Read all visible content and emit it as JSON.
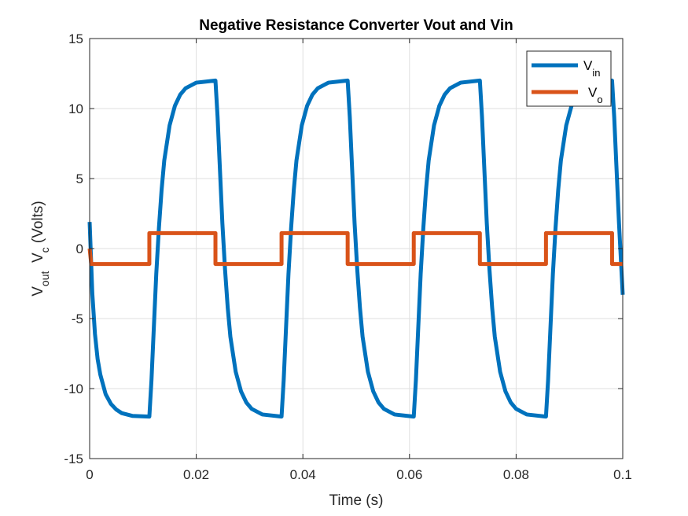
{
  "chart_data": {
    "type": "line",
    "title": "Negative Resistance Converter Vout and Vin",
    "xlabel": "Time (s)",
    "ylabel": {
      "parts": [
        {
          "text": "V",
          "sub": "out"
        },
        {
          "text": "V",
          "sub": "c"
        }
      ],
      "suffix": "(Volts)"
    },
    "xlim": [
      0,
      0.1
    ],
    "ylim": [
      -15,
      15
    ],
    "xticks": [
      0,
      0.02,
      0.04,
      0.06,
      0.08,
      0.1
    ],
    "xtick_labels": [
      "0",
      "0.02",
      "0.04",
      "0.06",
      "0.08",
      "0.1"
    ],
    "yticks": [
      -15,
      -10,
      -5,
      0,
      5,
      10,
      15
    ],
    "ytick_labels": [
      "-15",
      "-10",
      "-5",
      "0",
      "5",
      "10",
      "15"
    ],
    "grid": true,
    "legend_position": "top-right",
    "series": [
      {
        "name": "V_in",
        "legend_base": "V",
        "legend_sub": "in",
        "color": "#0072BD",
        "points": [
          [
            0.0,
            1.9
          ],
          [
            0.0005,
            -3.2
          ],
          [
            0.001,
            -6.1
          ],
          [
            0.0015,
            -7.9
          ],
          [
            0.002,
            -9.0
          ],
          [
            0.003,
            -10.4
          ],
          [
            0.004,
            -11.1
          ],
          [
            0.005,
            -11.5
          ],
          [
            0.006,
            -11.75
          ],
          [
            0.008,
            -11.95
          ],
          [
            0.0112,
            -12.0
          ],
          [
            0.0116,
            -9.4
          ],
          [
            0.012,
            -6.0
          ],
          [
            0.0125,
            -1.8
          ],
          [
            0.013,
            1.5
          ],
          [
            0.0135,
            4.2
          ],
          [
            0.014,
            6.3
          ],
          [
            0.015,
            8.8
          ],
          [
            0.016,
            10.2
          ],
          [
            0.017,
            11.0
          ],
          [
            0.018,
            11.45
          ],
          [
            0.02,
            11.85
          ],
          [
            0.0236,
            12.0
          ],
          [
            0.024,
            9.4
          ],
          [
            0.0244,
            6.0
          ],
          [
            0.0249,
            1.8
          ],
          [
            0.0254,
            -1.5
          ],
          [
            0.0259,
            -4.2
          ],
          [
            0.0264,
            -6.3
          ],
          [
            0.0274,
            -8.8
          ],
          [
            0.0284,
            -10.2
          ],
          [
            0.0294,
            -11.0
          ],
          [
            0.0304,
            -11.45
          ],
          [
            0.0324,
            -11.85
          ],
          [
            0.036,
            -12.0
          ],
          [
            0.0364,
            -9.4
          ],
          [
            0.0368,
            -6.0
          ],
          [
            0.0373,
            -1.8
          ],
          [
            0.0378,
            1.5
          ],
          [
            0.0383,
            4.2
          ],
          [
            0.0388,
            6.3
          ],
          [
            0.0398,
            8.8
          ],
          [
            0.0408,
            10.2
          ],
          [
            0.0418,
            11.0
          ],
          [
            0.0428,
            11.45
          ],
          [
            0.0448,
            11.85
          ],
          [
            0.0484,
            12.0
          ],
          [
            0.0488,
            9.4
          ],
          [
            0.0492,
            6.0
          ],
          [
            0.0497,
            1.8
          ],
          [
            0.0502,
            -1.5
          ],
          [
            0.0507,
            -4.2
          ],
          [
            0.0512,
            -6.3
          ],
          [
            0.0522,
            -8.8
          ],
          [
            0.0532,
            -10.2
          ],
          [
            0.0542,
            -11.0
          ],
          [
            0.0552,
            -11.45
          ],
          [
            0.0572,
            -11.85
          ],
          [
            0.0608,
            -12.0
          ],
          [
            0.0612,
            -9.4
          ],
          [
            0.0616,
            -6.0
          ],
          [
            0.0621,
            -1.8
          ],
          [
            0.0626,
            1.5
          ],
          [
            0.0631,
            4.2
          ],
          [
            0.0636,
            6.3
          ],
          [
            0.0646,
            8.8
          ],
          [
            0.0656,
            10.2
          ],
          [
            0.0666,
            11.0
          ],
          [
            0.0676,
            11.45
          ],
          [
            0.0696,
            11.85
          ],
          [
            0.0732,
            12.0
          ],
          [
            0.0736,
            9.4
          ],
          [
            0.074,
            6.0
          ],
          [
            0.0745,
            1.8
          ],
          [
            0.075,
            -1.5
          ],
          [
            0.0755,
            -4.2
          ],
          [
            0.076,
            -6.3
          ],
          [
            0.077,
            -8.8
          ],
          [
            0.078,
            -10.2
          ],
          [
            0.079,
            -11.0
          ],
          [
            0.08,
            -11.45
          ],
          [
            0.082,
            -11.85
          ],
          [
            0.0856,
            -12.0
          ],
          [
            0.086,
            -9.4
          ],
          [
            0.0864,
            -6.0
          ],
          [
            0.0869,
            -1.8
          ],
          [
            0.0874,
            1.5
          ],
          [
            0.0879,
            4.2
          ],
          [
            0.0884,
            6.3
          ],
          [
            0.0894,
            8.8
          ],
          [
            0.0904,
            10.2
          ],
          [
            0.0914,
            11.0
          ],
          [
            0.0924,
            11.45
          ],
          [
            0.0944,
            11.85
          ],
          [
            0.098,
            12.0
          ],
          [
            0.0984,
            9.4
          ],
          [
            0.0988,
            6.0
          ],
          [
            0.0993,
            1.8
          ],
          [
            0.1,
            -3.3
          ]
        ]
      },
      {
        "name": "V_o",
        "legend_base": "V",
        "legend_sub": "o",
        "color": "#D95319",
        "points": [
          [
            0.0,
            0.0
          ],
          [
            0.0003,
            -1.1
          ],
          [
            0.0112,
            -1.1
          ],
          [
            0.0112,
            1.1
          ],
          [
            0.0236,
            1.1
          ],
          [
            0.0236,
            -1.1
          ],
          [
            0.036,
            -1.1
          ],
          [
            0.036,
            1.1
          ],
          [
            0.0484,
            1.1
          ],
          [
            0.0484,
            -1.1
          ],
          [
            0.0608,
            -1.1
          ],
          [
            0.0608,
            1.1
          ],
          [
            0.0732,
            1.1
          ],
          [
            0.0732,
            -1.1
          ],
          [
            0.0856,
            -1.1
          ],
          [
            0.0856,
            1.1
          ],
          [
            0.098,
            1.1
          ],
          [
            0.098,
            -1.1
          ],
          [
            0.1,
            -1.1
          ]
        ]
      }
    ]
  }
}
